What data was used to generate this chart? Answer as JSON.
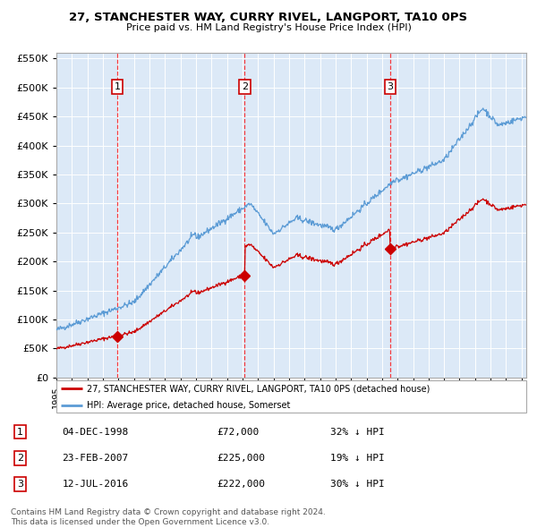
{
  "title": "27, STANCHESTER WAY, CURRY RIVEL, LANGPORT, TA10 0PS",
  "subtitle": "Price paid vs. HM Land Registry's House Price Index (HPI)",
  "plot_bg_color": "#dce9f7",
  "hpi_color": "#5b9bd5",
  "price_color": "#cc0000",
  "transactions": [
    {
      "num": 1,
      "date": "04-DEC-1998",
      "price": 72000,
      "x": 1998.92,
      "pct": "32% ↓ HPI"
    },
    {
      "num": 2,
      "date": "23-FEB-2007",
      "price": 225000,
      "x": 2007.14,
      "pct": "19% ↓ HPI"
    },
    {
      "num": 3,
      "date": "12-JUL-2016",
      "price": 222000,
      "x": 2016.53,
      "pct": "30% ↓ HPI"
    }
  ],
  "ylim": [
    0,
    560000
  ],
  "yticks": [
    0,
    50000,
    100000,
    150000,
    200000,
    250000,
    300000,
    350000,
    400000,
    450000,
    500000,
    550000
  ],
  "xlim": [
    1995.0,
    2025.3
  ],
  "legend_red": "27, STANCHESTER WAY, CURRY RIVEL, LANGPORT, TA10 0PS (detached house)",
  "legend_blue": "HPI: Average price, detached house, Somerset",
  "footnote": "Contains HM Land Registry data © Crown copyright and database right 2024.\nThis data is licensed under the Open Government Licence v3.0."
}
